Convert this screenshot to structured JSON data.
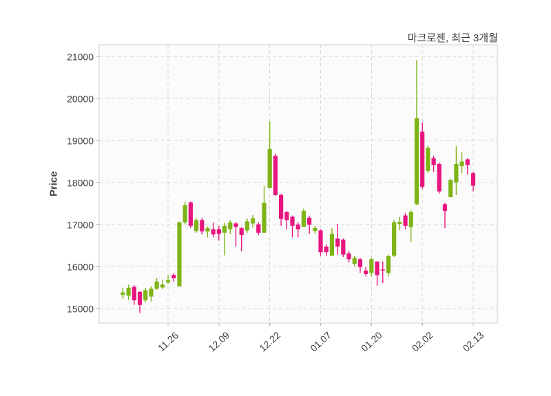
{
  "header": {
    "title": "마크로젠, 최근 3개월"
  },
  "chart_data": {
    "type": "candlestick",
    "title": "마크로젠, 최근 3개월",
    "ylabel": "Price",
    "grid": "dashed",
    "legend": "none",
    "y_ticks": [
      15000,
      16000,
      17000,
      18000,
      19000,
      20000,
      21000
    ],
    "ylim": [
      14660,
      21285
    ],
    "x_tick_labels": [
      "11.26",
      "12.09",
      "12.22",
      "01.07",
      "01.20",
      "02.02",
      "02.13"
    ],
    "x_tick_candle_index": [
      8,
      17,
      26,
      35,
      44,
      53,
      62
    ],
    "candle_format": "open,high,low,close",
    "candles": [
      [
        15330,
        15500,
        15230,
        15390
      ],
      [
        15310,
        15570,
        15210,
        15500
      ],
      [
        15520,
        15560,
        15090,
        15200
      ],
      [
        15400,
        15420,
        14900,
        15090
      ],
      [
        15200,
        15500,
        15150,
        15440
      ],
      [
        15290,
        15540,
        15170,
        15480
      ],
      [
        15475,
        15730,
        15450,
        15650
      ],
      [
        15505,
        15695,
        15465,
        15575
      ],
      [
        15625,
        15805,
        15590,
        15680
      ],
      [
        15805,
        15850,
        15640,
        15725
      ],
      [
        15530,
        17080,
        15530,
        17055
      ],
      [
        17055,
        17545,
        17000,
        17465
      ],
      [
        17530,
        17555,
        16920,
        16975
      ],
      [
        16850,
        17165,
        16810,
        17110
      ],
      [
        17110,
        17165,
        16770,
        16840
      ],
      [
        16840,
        16960,
        16700,
        16920
      ],
      [
        16890,
        17050,
        16700,
        16770
      ],
      [
        16890,
        16975,
        16620,
        16780
      ],
      [
        16810,
        17040,
        16270,
        16975
      ],
      [
        16890,
        17110,
        16780,
        17055
      ],
      [
        17030,
        17070,
        16480,
        16945
      ],
      [
        16920,
        16945,
        16370,
        16755
      ],
      [
        16865,
        17150,
        16810,
        17080
      ],
      [
        17030,
        17230,
        16930,
        17150
      ],
      [
        17010,
        17055,
        16755,
        16810
      ],
      [
        16810,
        17930,
        16810,
        17520
      ],
      [
        17875,
        19460,
        17875,
        18805
      ],
      [
        18640,
        18695,
        17685,
        17710
      ],
      [
        17710,
        17740,
        16975,
        17140
      ],
      [
        17300,
        17330,
        16890,
        17110
      ],
      [
        17190,
        17220,
        16700,
        16975
      ],
      [
        17005,
        17055,
        16700,
        16890
      ],
      [
        16945,
        17385,
        16945,
        17330
      ],
      [
        17165,
        17205,
        16780,
        17000
      ],
      [
        16850,
        16980,
        16780,
        16925
      ],
      [
        16865,
        16890,
        16260,
        16345
      ],
      [
        16480,
        16535,
        16260,
        16345
      ],
      [
        16260,
        16920,
        16260,
        16780
      ],
      [
        16670,
        17025,
        16290,
        16480
      ],
      [
        16645,
        16670,
        16235,
        16290
      ],
      [
        16315,
        16370,
        16100,
        16180
      ],
      [
        16070,
        16260,
        16015,
        16210
      ],
      [
        16180,
        16210,
        15855,
        15990
      ],
      [
        15910,
        15990,
        15770,
        15825
      ],
      [
        15855,
        16210,
        15770,
        16180
      ],
      [
        16125,
        16125,
        15550,
        15800
      ],
      [
        15935,
        16125,
        15610,
        15930
      ],
      [
        15850,
        16290,
        15770,
        16250
      ],
      [
        16260,
        17110,
        16235,
        17055
      ],
      [
        17020,
        17190,
        16870,
        17070
      ],
      [
        17220,
        17275,
        16890,
        16975
      ],
      [
        16945,
        17355,
        16590,
        17300
      ],
      [
        17490,
        20920,
        17465,
        19540
      ],
      [
        19215,
        19430,
        17850,
        17900
      ],
      [
        18285,
        18885,
        18230,
        18830
      ],
      [
        18585,
        18640,
        18255,
        18420
      ],
      [
        18450,
        18475,
        17740,
        17790
      ],
      [
        17490,
        17520,
        16920,
        17330
      ],
      [
        17660,
        18095,
        17655,
        18065
      ],
      [
        18010,
        18870,
        17710,
        18450
      ],
      [
        18395,
        18720,
        18230,
        18505
      ],
      [
        18555,
        18585,
        18200,
        18420
      ],
      [
        18230,
        18255,
        17790,
        17930
      ]
    ],
    "colors": {
      "up": "#7eb416",
      "down": "#e7157f",
      "grid": "#d6d6d6",
      "panel_bg": "#fbfbfb",
      "panel_border": "#e6e6e6",
      "tick": "#b8b8b8",
      "text": "#3d3d3d"
    }
  }
}
